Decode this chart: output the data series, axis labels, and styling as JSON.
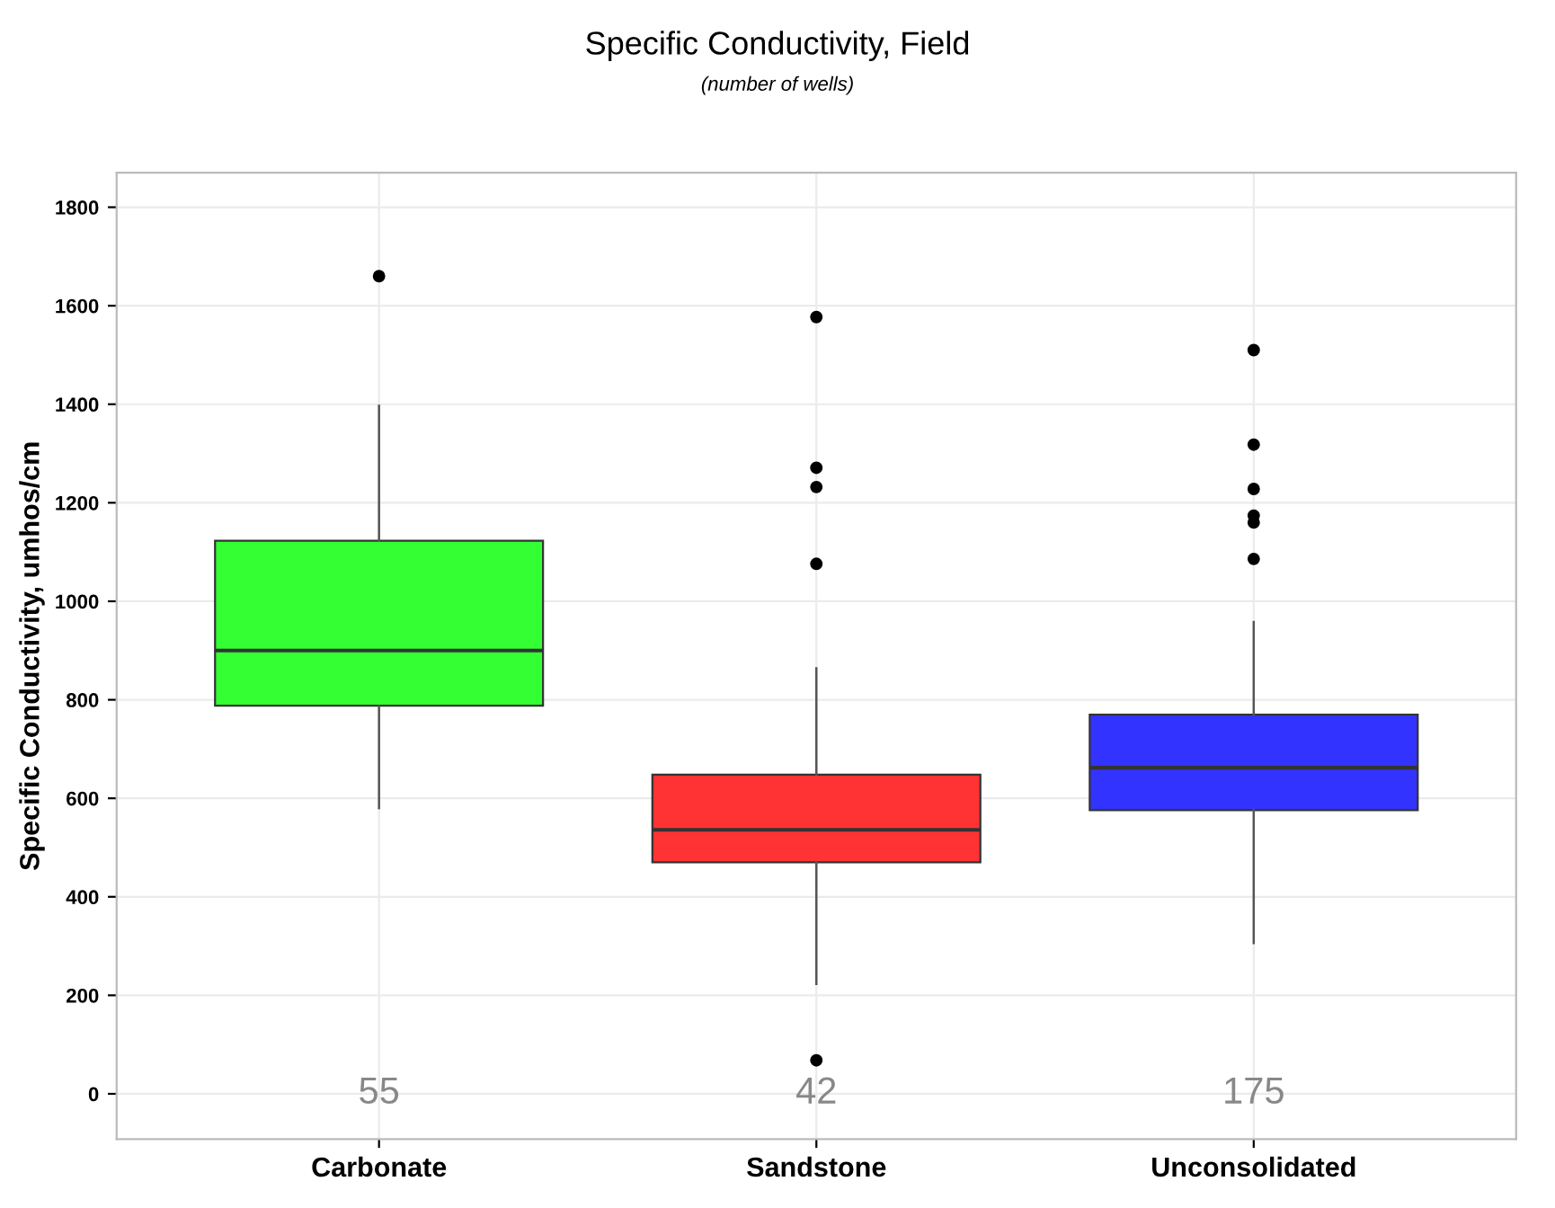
{
  "chart_data": {
    "type": "box",
    "title": "Specific Conductivity, Field",
    "subtitle": "(number of wells)",
    "ylabel": "Specific Conductivity, umhos/cm",
    "categories": [
      "Carbonate",
      "Sandstone",
      "Unconsolidated"
    ],
    "colors": [
      "#33ff33",
      "#ff3333",
      "#3333ff"
    ],
    "boxes": [
      {
        "low": 580,
        "q1": 788,
        "median": 900,
        "q3": 1123,
        "high": 1397,
        "outliers": [
          1660
        ]
      },
      {
        "low": 223,
        "q1": 470,
        "median": 536,
        "q3": 648,
        "high": 864,
        "outliers": [
          1577,
          1271,
          1232,
          1076,
          68
        ]
      },
      {
        "low": 306,
        "q1": 576,
        "median": 662,
        "q3": 770,
        "high": 958,
        "outliers": [
          1510,
          1318,
          1228,
          1174,
          1160,
          1086
        ]
      }
    ],
    "annotations": [
      "55",
      "42",
      "175"
    ],
    "ylim": [
      -92,
      1870
    ],
    "yticks": [
      0,
      200,
      400,
      600,
      800,
      1000,
      1200,
      1400,
      1600,
      1800
    ],
    "grid": true,
    "legend": false
  }
}
